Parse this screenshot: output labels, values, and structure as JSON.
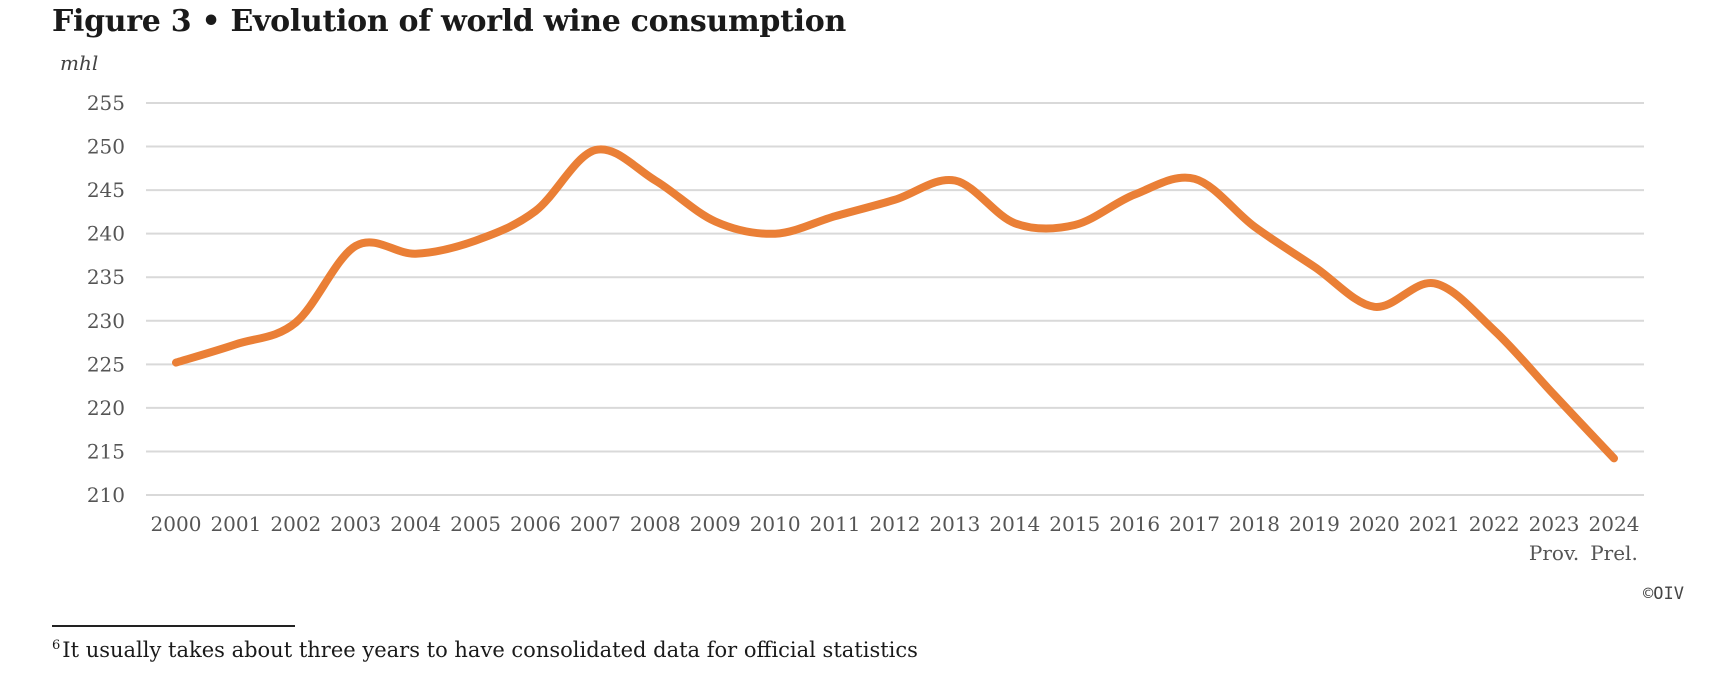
{
  "chart_data": {
    "type": "line",
    "title": "Figure 3 • Evolution of world wine consumption",
    "ylabel": "mhl",
    "xlabel": "",
    "ylim": [
      210,
      255
    ],
    "yticks": [
      210,
      215,
      220,
      225,
      230,
      235,
      240,
      245,
      250,
      255
    ],
    "grid": true,
    "categories": [
      "2000",
      "2001",
      "2002",
      "2003",
      "2004",
      "2005",
      "2006",
      "2007",
      "2008",
      "2009",
      "2010",
      "2011",
      "2012",
      "2013",
      "2014",
      "2015",
      "2016",
      "2017",
      "2018",
      "2019",
      "2020",
      "2021",
      "2022",
      "2023",
      "2024"
    ],
    "category_sublabels": [
      "",
      "",
      "",
      "",
      "",
      "",
      "",
      "",
      "",
      "",
      "",
      "",
      "",
      "",
      "",
      "",
      "",
      "",
      "",
      "",
      "",
      "",
      "",
      "Prov.",
      "Prel."
    ],
    "series": [
      {
        "values": [
          225.2,
          227.3,
          229.8,
          238.6,
          237.7,
          239.2,
          242.6,
          249.6,
          246.1,
          241.4,
          240.0,
          242.0,
          243.9,
          246.1,
          241.2,
          241.0,
          244.5,
          246.3,
          240.8,
          236.2,
          231.6,
          234.3,
          228.9,
          221.5,
          214.2
        ]
      }
    ],
    "colors": {
      "series": "#ea7f36",
      "grid": "#d9d9d9"
    }
  },
  "copyright": "©OIV",
  "footnote": {
    "marker": "6",
    "text": "It usually takes about three years to have consolidated data for official statistics"
  }
}
